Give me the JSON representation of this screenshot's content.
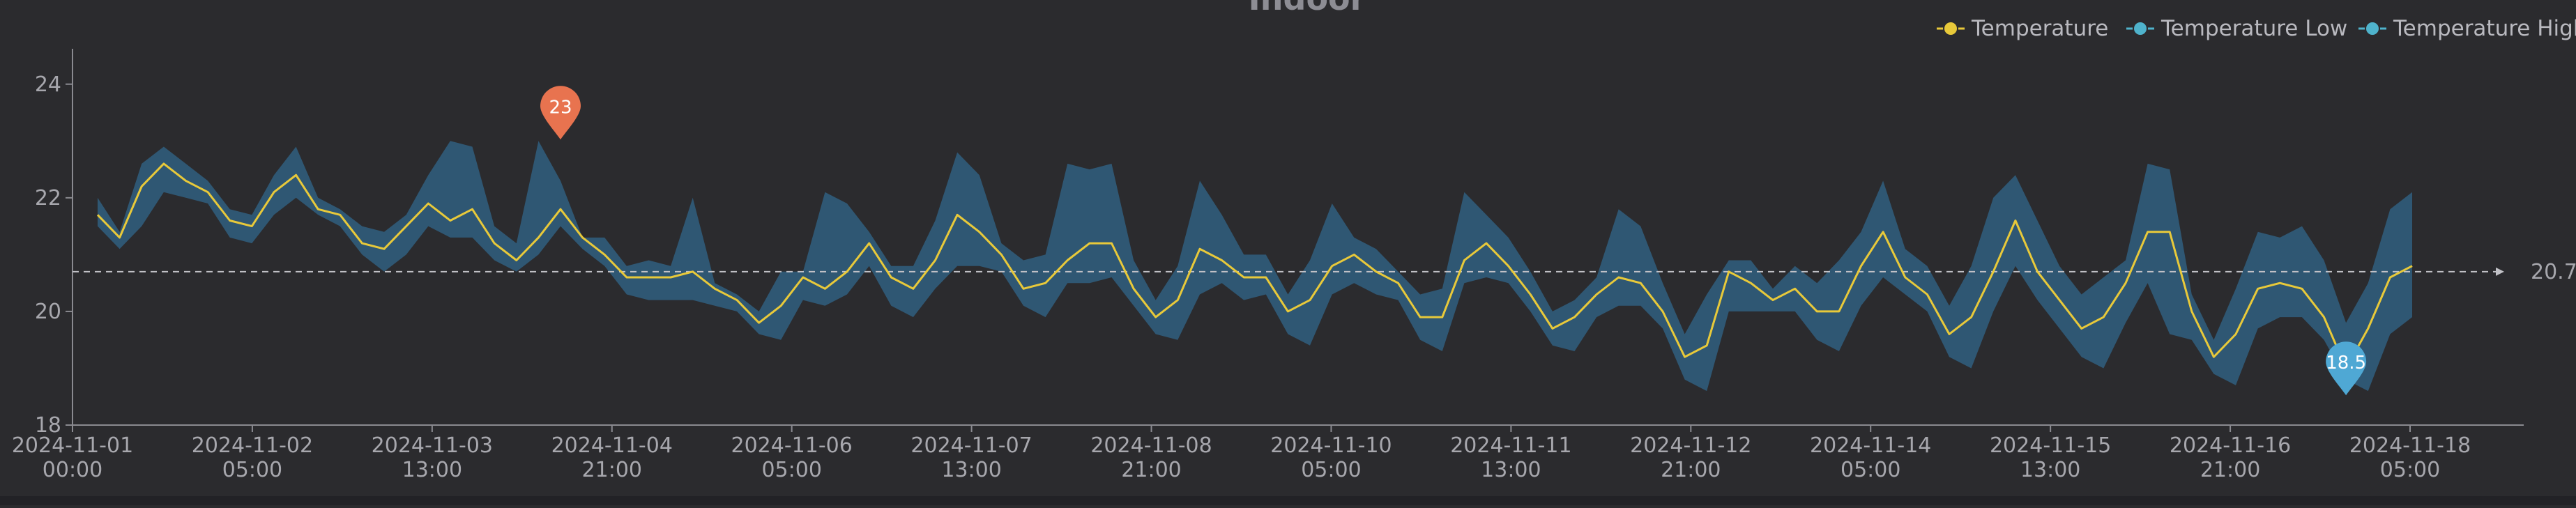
{
  "chart_data": {
    "type": "line",
    "title": "Indoor",
    "ylim": [
      18,
      24.5
    ],
    "yticks": [
      18,
      20,
      22,
      24
    ],
    "xtick_labels": [
      {
        "line1": "2024-11-01",
        "line2": "00:00"
      },
      {
        "line1": "2024-11-02",
        "line2": "05:00"
      },
      {
        "line1": "2024-11-03",
        "line2": "13:00"
      },
      {
        "line1": "2024-11-04",
        "line2": "21:00"
      },
      {
        "line1": "2024-11-06",
        "line2": "05:00"
      },
      {
        "line1": "2024-11-07",
        "line2": "13:00"
      },
      {
        "line1": "2024-11-08",
        "line2": "21:00"
      },
      {
        "line1": "2024-11-10",
        "line2": "05:00"
      },
      {
        "line1": "2024-11-11",
        "line2": "13:00"
      },
      {
        "line1": "2024-11-12",
        "line2": "21:00"
      },
      {
        "line1": "2024-11-14",
        "line2": "05:00"
      },
      {
        "line1": "2024-11-15",
        "line2": "13:00"
      },
      {
        "line1": "2024-11-16",
        "line2": "21:00"
      },
      {
        "line1": "2024-11-18",
        "line2": "05:00"
      }
    ],
    "legend": [
      {
        "name": "Temperature",
        "color": "#e8c93a"
      },
      {
        "name": "Temperature Low",
        "color": "#4fb3cc"
      },
      {
        "name": "Temperature High",
        "color": "#4fb3cc"
      }
    ],
    "legend_position": "top-right",
    "series": [
      {
        "name": "Temperature",
        "values": [
          21.7,
          21.3,
          22.2,
          22.6,
          22.3,
          22.1,
          21.6,
          21.5,
          22.1,
          22.4,
          21.8,
          21.7,
          21.2,
          21.1,
          21.5,
          21.9,
          21.6,
          21.8,
          21.2,
          20.9,
          21.3,
          21.8,
          21.3,
          21.0,
          20.6,
          20.6,
          20.6,
          20.7,
          20.4,
          20.2,
          19.8,
          20.1,
          20.6,
          20.4,
          20.7,
          21.2,
          20.6,
          20.4,
          20.9,
          21.7,
          21.4,
          21.0,
          20.4,
          20.5,
          20.9,
          21.2,
          21.2,
          20.4,
          19.9,
          20.2,
          21.1,
          20.9,
          20.6,
          20.6,
          20.0,
          20.2,
          20.8,
          21.0,
          20.7,
          20.5,
          19.9,
          19.9,
          20.9,
          21.2,
          20.8,
          20.3,
          19.7,
          19.9,
          20.3,
          20.6,
          20.5,
          20.0,
          19.2,
          19.4,
          20.7,
          20.5,
          20.2,
          20.4,
          20.0,
          20.0,
          20.8,
          21.4,
          20.6,
          20.3,
          19.6,
          19.9,
          20.7,
          21.6,
          20.7,
          20.2,
          19.7,
          19.9,
          20.5,
          21.4,
          21.4,
          20.0,
          19.2,
          19.6,
          20.4,
          20.5,
          20.4,
          19.9,
          19.0,
          19.7,
          20.6,
          20.8
        ]
      },
      {
        "name": "Temperature Low",
        "values": [
          21.5,
          21.1,
          21.5,
          22.1,
          22.0,
          21.9,
          21.3,
          21.2,
          21.7,
          22.0,
          21.7,
          21.5,
          21.0,
          20.7,
          21.0,
          21.5,
          21.3,
          21.3,
          20.9,
          20.7,
          21.0,
          21.5,
          21.1,
          20.8,
          20.3,
          20.2,
          20.2,
          20.2,
          20.1,
          20.0,
          19.6,
          19.5,
          20.2,
          20.1,
          20.3,
          20.8,
          20.1,
          19.9,
          20.4,
          20.8,
          20.8,
          20.7,
          20.1,
          19.9,
          20.5,
          20.5,
          20.6,
          20.1,
          19.6,
          19.5,
          20.3,
          20.5,
          20.2,
          20.3,
          19.6,
          19.4,
          20.3,
          20.5,
          20.3,
          20.2,
          19.5,
          19.3,
          20.5,
          20.6,
          20.5,
          20.0,
          19.4,
          19.3,
          19.9,
          20.1,
          20.1,
          19.7,
          18.8,
          18.6,
          20.0,
          20.0,
          20.0,
          20.0,
          19.5,
          19.3,
          20.1,
          20.6,
          20.3,
          20.0,
          19.2,
          19.0,
          20.0,
          20.8,
          20.2,
          19.7,
          19.2,
          19.0,
          19.8,
          20.5,
          19.6,
          19.5,
          18.9,
          18.7,
          19.7,
          19.9,
          19.9,
          19.5,
          18.8,
          18.6,
          19.6,
          19.9
        ]
      },
      {
        "name": "Temperature High",
        "values": [
          22.0,
          21.4,
          22.6,
          22.9,
          22.6,
          22.3,
          21.8,
          21.7,
          22.4,
          22.9,
          22.0,
          21.8,
          21.5,
          21.4,
          21.7,
          22.4,
          23.0,
          22.9,
          21.5,
          21.2,
          23.0,
          22.3,
          21.3,
          21.3,
          20.8,
          20.9,
          20.8,
          22.0,
          20.5,
          20.3,
          20.0,
          20.7,
          20.7,
          22.1,
          21.9,
          21.4,
          20.8,
          20.8,
          21.6,
          22.8,
          22.4,
          21.2,
          20.9,
          21.0,
          22.6,
          22.5,
          22.6,
          20.9,
          20.2,
          20.8,
          22.3,
          21.7,
          21.0,
          21.0,
          20.3,
          20.9,
          21.9,
          21.3,
          21.1,
          20.7,
          20.3,
          20.4,
          22.1,
          21.7,
          21.3,
          20.7,
          20.0,
          20.2,
          20.6,
          21.8,
          21.5,
          20.5,
          19.6,
          20.3,
          20.9,
          20.9,
          20.4,
          20.8,
          20.5,
          20.9,
          21.4,
          22.3,
          21.1,
          20.8,
          20.1,
          20.8,
          22.0,
          22.4,
          21.6,
          20.8,
          20.3,
          20.6,
          20.9,
          22.6,
          22.5,
          20.3,
          19.5,
          20.4,
          21.4,
          21.3,
          21.5,
          20.9,
          19.8,
          20.5,
          21.8,
          22.1
        ]
      }
    ],
    "mark_line": {
      "value": 20.7,
      "label": "20.7",
      "style": "dashed"
    },
    "mark_points": [
      {
        "type": "max",
        "label": "23",
        "value": 23,
        "index": 21,
        "color": "#e8734f"
      },
      {
        "type": "min",
        "label": "18.5",
        "value": 18.5,
        "index": 102,
        "color": "#4fa8d4"
      }
    ],
    "band_color": "#2f5773",
    "grid": false
  }
}
